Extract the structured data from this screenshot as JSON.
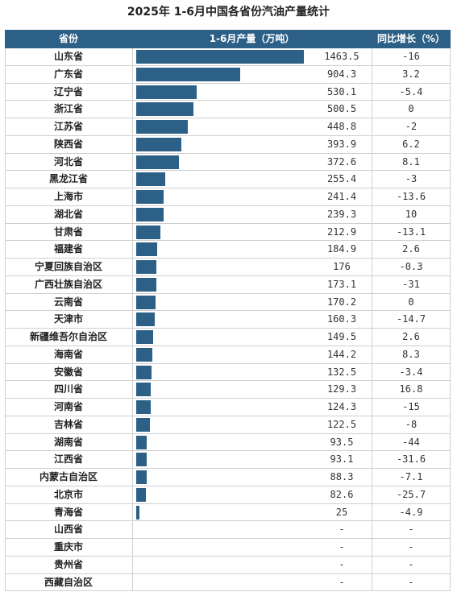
{
  "title": "2025年 1-6月中国各省份汽油产量统计",
  "header": {
    "province": "省份",
    "production": "1-6月产量（万吨）",
    "yoy": "同比增长（%）"
  },
  "colors": {
    "bar": "#2d6086",
    "header_bg": "#2d6086"
  },
  "chart_data": {
    "type": "bar",
    "orientation": "horizontal",
    "title": "2025年 1-6月中国各省份汽油产量统计",
    "xlim": [
      0,
      1463.5
    ],
    "rows": [
      {
        "province": "山东省",
        "production": "1463.5",
        "value": 1463.5,
        "yoy": "-16"
      },
      {
        "province": "广东省",
        "production": "904.3",
        "value": 904.3,
        "yoy": "3.2"
      },
      {
        "province": "辽宁省",
        "production": "530.1",
        "value": 530.1,
        "yoy": "-5.4"
      },
      {
        "province": "浙江省",
        "production": "500.5",
        "value": 500.5,
        "yoy": "0"
      },
      {
        "province": "江苏省",
        "production": "448.8",
        "value": 448.8,
        "yoy": "-2"
      },
      {
        "province": "陕西省",
        "production": "393.9",
        "value": 393.9,
        "yoy": "6.2"
      },
      {
        "province": "河北省",
        "production": "372.6",
        "value": 372.6,
        "yoy": "8.1"
      },
      {
        "province": "黑龙江省",
        "production": "255.4",
        "value": 255.4,
        "yoy": "-3"
      },
      {
        "province": "上海市",
        "production": "241.4",
        "value": 241.4,
        "yoy": "-13.6"
      },
      {
        "province": "湖北省",
        "production": "239.3",
        "value": 239.3,
        "yoy": "10"
      },
      {
        "province": "甘肃省",
        "production": "212.9",
        "value": 212.9,
        "yoy": "-13.1"
      },
      {
        "province": "福建省",
        "production": "184.9",
        "value": 184.9,
        "yoy": "2.6"
      },
      {
        "province": "宁夏回族自治区",
        "production": "176",
        "value": 176,
        "yoy": "-0.3"
      },
      {
        "province": "广西壮族自治区",
        "production": "173.1",
        "value": 173.1,
        "yoy": "-31"
      },
      {
        "province": "云南省",
        "production": "170.2",
        "value": 170.2,
        "yoy": "0"
      },
      {
        "province": "天津市",
        "production": "160.3",
        "value": 160.3,
        "yoy": "-14.7"
      },
      {
        "province": "新疆维吾尔自治区",
        "production": "149.5",
        "value": 149.5,
        "yoy": "2.6"
      },
      {
        "province": "海南省",
        "production": "144.2",
        "value": 144.2,
        "yoy": "8.3"
      },
      {
        "province": "安徽省",
        "production": "132.5",
        "value": 132.5,
        "yoy": "-3.4"
      },
      {
        "province": "四川省",
        "production": "129.3",
        "value": 129.3,
        "yoy": "16.8"
      },
      {
        "province": "河南省",
        "production": "124.3",
        "value": 124.3,
        "yoy": "-15"
      },
      {
        "province": "吉林省",
        "production": "122.5",
        "value": 122.5,
        "yoy": "-8"
      },
      {
        "province": "湖南省",
        "production": "93.5",
        "value": 93.5,
        "yoy": "-44"
      },
      {
        "province": "江西省",
        "production": "93.1",
        "value": 93.1,
        "yoy": "-31.6"
      },
      {
        "province": "内蒙古自治区",
        "production": "88.3",
        "value": 88.3,
        "yoy": "-7.1"
      },
      {
        "province": "北京市",
        "production": "82.6",
        "value": 82.6,
        "yoy": "-25.7"
      },
      {
        "province": "青海省",
        "production": "25",
        "value": 25,
        "yoy": "-4.9"
      },
      {
        "province": "山西省",
        "production": "-",
        "value": 0,
        "yoy": "-"
      },
      {
        "province": "重庆市",
        "production": "-",
        "value": 0,
        "yoy": "-"
      },
      {
        "province": "贵州省",
        "production": "-",
        "value": 0,
        "yoy": "-"
      },
      {
        "province": "西藏自治区",
        "production": "-",
        "value": 0,
        "yoy": "-"
      }
    ]
  }
}
